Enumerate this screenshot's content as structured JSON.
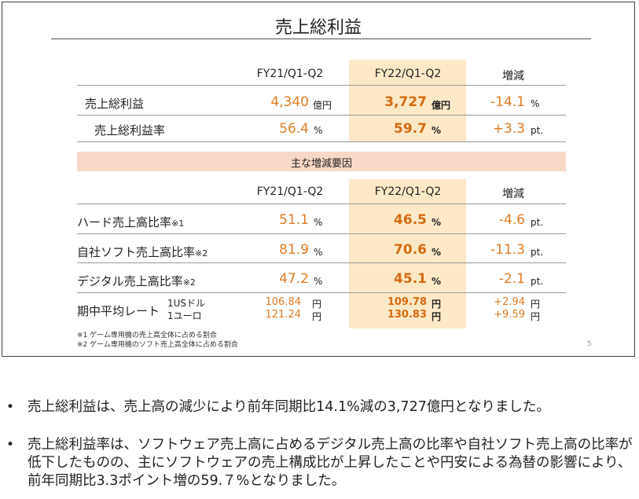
{
  "slide": {
    "title": "売上総利益",
    "col_headers": [
      "FY21/Q1-Q2",
      "FY22/Q1-Q2",
      "増減"
    ],
    "rows_top": [
      {
        "label": "売上総利益",
        "fy21": "4,340",
        "fy21_unit": "億円",
        "fy22": "3,727",
        "fy22_unit": "億円",
        "diff": "-14.1",
        "diff_unit": "%"
      },
      {
        "label": "売上総利益率",
        "fy21": "56.4",
        "fy21_unit": "%",
        "fy22": "59.7",
        "fy22_unit": "%",
        "diff": "+3.3",
        "diff_unit": "pt."
      }
    ],
    "band_label": "主な増減要因",
    "col_headers_2": [
      "FY21/Q1-Q2",
      "FY22/Q1-Q2",
      "増減"
    ],
    "rows_bottom": [
      {
        "label": "ハード売上高比率",
        "sup": "※1",
        "fy21": "51.1",
        "fy21_unit": "%",
        "fy22": "46.5",
        "fy22_unit": "%",
        "diff": "-4.6",
        "diff_unit": "pt."
      },
      {
        "label": "自社ソフト売上高比率",
        "sup": "※2",
        "fy21": "81.9",
        "fy21_unit": "%",
        "fy22": "70.6",
        "fy22_unit": "%",
        "diff": "-11.3",
        "diff_unit": "pt."
      },
      {
        "label": "デジタル売上高比率",
        "sup": "※2",
        "fy21": "47.2",
        "fy21_unit": "%",
        "fy22": "45.1",
        "fy22_unit": "%",
        "diff": "-2.1",
        "diff_unit": "pt."
      }
    ],
    "fx": {
      "label": "期中平均レート",
      "usd_label": "1USドル",
      "eur_label": "1ユーロ",
      "usd_fy21": "106.84",
      "eur_fy21": "121.24",
      "usd_fy22": "109.78",
      "eur_fy22": "130.83",
      "usd_diff": "+2.94",
      "eur_diff": "+9.59",
      "unit": "円"
    },
    "notes": [
      "※1 ゲーム専用機の売上高全体に占める割合",
      "※2 ゲーム専用機のソフト売上高全体に占める割合"
    ],
    "page_number": "5"
  },
  "bullets": [
    {
      "marker": "•",
      "text": "売上総利益は、売上高の減少により前年同期比14.1%減の3,727億円となりました。"
    },
    {
      "marker": "•",
      "text": "売上総利益率は、ソフトウェア売上高に占めるデジタル売上高の比率や自社ソフト売上高の比率が低下したものの、主にソフトウェアの売上構成比が上昇したことや円安による為替の影響により、前年同期比3.3ポイント増の59.７%となりました。"
    }
  ],
  "colors": {
    "accent_orange": "#e07c24",
    "highlight_column": "#fde9c7",
    "band": "#f8d8c6"
  }
}
